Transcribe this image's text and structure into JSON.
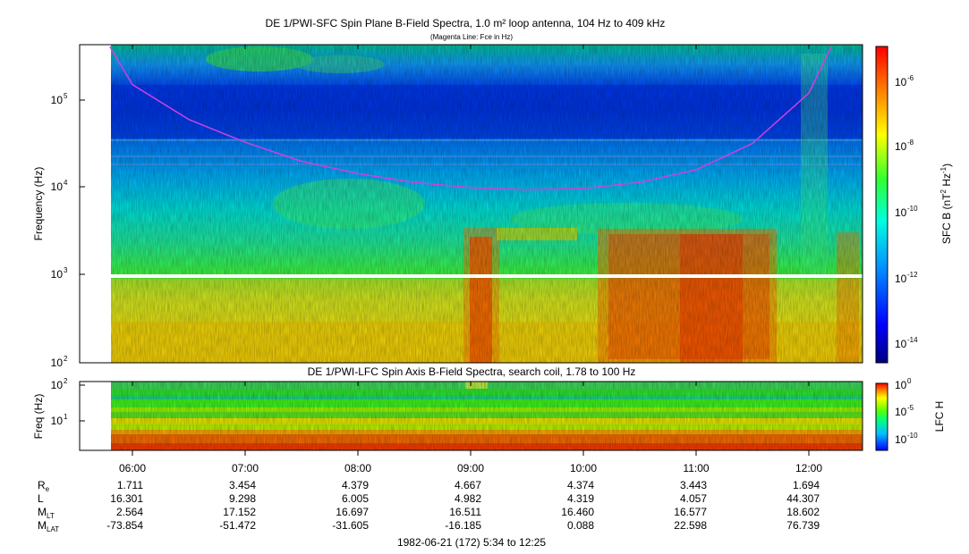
{
  "chart_data": [
    {
      "type": "heatmap",
      "title": "DE 1/PWI-SFC  Spin Plane B-Field Spectra, 1.0 m² loop antenna, 104 Hz to 409 kHz",
      "subtitle": "(Magenta Line: Fce in Hz)",
      "ylabel": "Frequency (Hz)",
      "yscale": "log",
      "ylim": [
        100,
        409000
      ],
      "yticks": [
        {
          "exp": "2"
        },
        {
          "exp": "3"
        },
        {
          "exp": "4"
        },
        {
          "exp": "5"
        }
      ],
      "colorbar": {
        "label": "SFC B (nT",
        "label_exp1": "2",
        "label_mid": " Hz",
        "label_exp2": "-1",
        "label_end": ")",
        "scale": "log",
        "ticks": [
          {
            "exp": "-6"
          },
          {
            "exp": "-8"
          },
          {
            "exp": "-10"
          },
          {
            "exp": "-12"
          },
          {
            "exp": "-14"
          }
        ]
      },
      "fce_line_color": "#d040e0",
      "fce_line": [
        {
          "t": "05:48",
          "f": 409000
        },
        {
          "t": "06:00",
          "f": 150000
        },
        {
          "t": "06:30",
          "f": 60000
        },
        {
          "t": "07:00",
          "f": 33000
        },
        {
          "t": "07:30",
          "f": 20000
        },
        {
          "t": "08:00",
          "f": 14500
        },
        {
          "t": "08:30",
          "f": 11500
        },
        {
          "t": "09:00",
          "f": 10000
        },
        {
          "t": "09:30",
          "f": 9500
        },
        {
          "t": "10:00",
          "f": 9800
        },
        {
          "t": "10:30",
          "f": 11500
        },
        {
          "t": "11:00",
          "f": 16000
        },
        {
          "t": "11:30",
          "f": 32000
        },
        {
          "t": "12:00",
          "f": 120000
        },
        {
          "t": "12:12",
          "f": 409000
        }
      ]
    },
    {
      "type": "heatmap",
      "title": "DE 1/PWI-LFC  Spin Axis B-Field Spectra, search coil, 1.78 to 100 Hz",
      "ylabel": "Freq (Hz)",
      "yscale": "log",
      "ylim": [
        1.78,
        100
      ],
      "yticks": [
        {
          "base": "10",
          "exp": "1"
        },
        {
          "base": "10",
          "exp": "2"
        }
      ],
      "colorbar": {
        "label": "LFC H",
        "scale": "log",
        "ticks": [
          {
            "text": "10",
            "exp": "0"
          },
          {
            "text": "10",
            "exp": "-5"
          },
          {
            "text": "10",
            "exp": "-10"
          }
        ]
      }
    }
  ],
  "xaxis": {
    "ticks": [
      "06:00",
      "07:00",
      "08:00",
      "09:00",
      "10:00",
      "11:00",
      "12:00"
    ],
    "footer": "1982-06-21 (172) 5:34 to 12:25"
  },
  "ephemeris": {
    "rows": [
      {
        "label": "R",
        "sub": "e",
        "values": [
          "1.711",
          "3.454",
          "4.379",
          "4.667",
          "4.374",
          "3.443",
          "1.694"
        ]
      },
      {
        "label": "L",
        "sub": "",
        "values": [
          "16.301",
          "9.298",
          "6.005",
          "4.982",
          "4.319",
          "4.057",
          "44.307"
        ]
      },
      {
        "label": "M",
        "sub": "LT",
        "values": [
          "2.564",
          "17.152",
          "16.697",
          "16.511",
          "16.460",
          "16.577",
          "18.602"
        ]
      },
      {
        "label": "M",
        "sub": "LAT",
        "values": [
          "-73.854",
          "-51.472",
          "-31.605",
          "-16.185",
          "0.088",
          "22.598",
          "76.739"
        ]
      }
    ]
  }
}
